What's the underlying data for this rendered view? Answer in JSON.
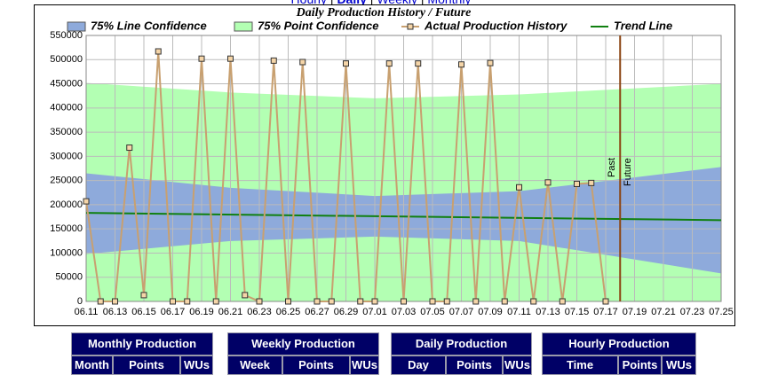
{
  "nav": {
    "links": [
      "Hourly",
      "Daily",
      "Weekly",
      "Monthly"
    ],
    "current": 1
  },
  "chart_data": {
    "type": "line",
    "title": "Daily Production History / Future",
    "categories": [
      "06.11",
      null,
      "06.13",
      null,
      "06.15",
      null,
      "06.17",
      null,
      "06.19",
      null,
      "06.21",
      null,
      "06.23",
      null,
      "06.25",
      null,
      "06.27",
      null,
      "06.29",
      null,
      "07.01",
      null,
      "07.03",
      null,
      "07.05",
      null,
      "07.07",
      null,
      "07.09",
      null,
      "07.11",
      null,
      "07.13",
      null,
      "07.15",
      null,
      "07.17",
      null,
      "07.19",
      null,
      "07.21",
      null,
      "07.23",
      null,
      "07.25"
    ],
    "ylim": [
      0,
      550000
    ],
    "yticks": [
      0,
      50000,
      100000,
      150000,
      200000,
      250000,
      300000,
      350000,
      400000,
      450000,
      500000,
      550000
    ],
    "grid": true,
    "bands": [
      {
        "name": "75% Point Confidence",
        "color": "#b3ffb3",
        "x": [
          "06.11",
          "06.21",
          "07.01",
          "07.11",
          "07.25"
        ],
        "upper": [
          452000,
          432000,
          420000,
          428000,
          450000
        ],
        "lower": [
          -86000,
          -74000,
          -68000,
          -82000,
          -114000
        ]
      },
      {
        "name": "75% Line Confidence",
        "color": "#8eaadb",
        "x": [
          "06.11",
          "06.21",
          "07.01",
          "07.11",
          "07.25"
        ],
        "upper": [
          265000,
          235000,
          218000,
          228000,
          278000
        ],
        "lower": [
          98000,
          125000,
          134000,
          125000,
          58000
        ]
      }
    ],
    "series": [
      {
        "name": "Actual Production History",
        "color": "#c8a070",
        "marker_color": "#f5d5a8",
        "values": [
          207000,
          0,
          0,
          318000,
          13000,
          517000,
          0,
          0,
          502000,
          0,
          502000,
          13000,
          0,
          498000,
          0,
          495000,
          0,
          0,
          492000,
          0,
          0,
          492000,
          0,
          492000,
          0,
          0,
          490000,
          0,
          493000,
          0,
          236000,
          0,
          246000,
          0,
          243000,
          245000,
          0,
          null,
          null,
          null,
          null,
          null,
          null,
          null,
          null
        ]
      }
    ],
    "trend": {
      "name": "Trend Line",
      "color": "#108010",
      "x": [
        "06.11",
        "07.25"
      ],
      "values": [
        183000,
        168000
      ]
    },
    "divider": {
      "index": 37,
      "color": "#8b4513",
      "labels": [
        "Past",
        "Future"
      ]
    }
  },
  "tables": [
    {
      "title": "Monthly Production",
      "columns": [
        "Month",
        "Points",
        "WUs"
      ]
    },
    {
      "title": "Weekly Production",
      "columns": [
        "Week",
        "Points",
        "WUs"
      ]
    },
    {
      "title": "Daily Production",
      "columns": [
        "Day",
        "Points",
        "WUs"
      ]
    },
    {
      "title": "Hourly Production",
      "columns": [
        "Time",
        "Points",
        "WUs"
      ]
    }
  ]
}
